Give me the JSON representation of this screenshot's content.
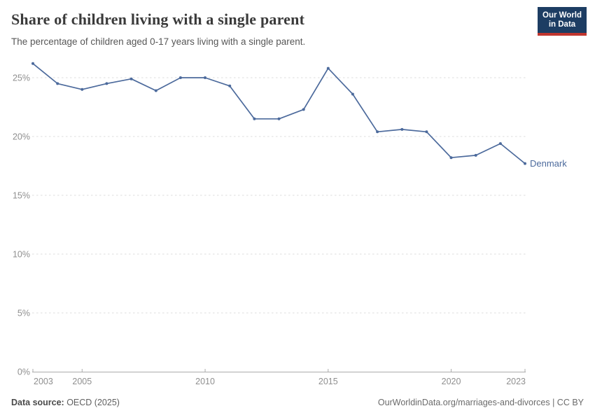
{
  "header": {
    "title": "Share of children living with a single parent",
    "subtitle": "The percentage of children aged 0-17 years living with a single parent."
  },
  "logo": {
    "line1": "Our World",
    "line2": "in Data"
  },
  "chart_data": {
    "type": "line",
    "title": "Share of children living with a single parent",
    "xlabel": "",
    "ylabel": "",
    "x": [
      2003,
      2004,
      2005,
      2006,
      2007,
      2008,
      2009,
      2010,
      2011,
      2012,
      2013,
      2014,
      2015,
      2016,
      2017,
      2018,
      2019,
      2020,
      2021,
      2022,
      2023
    ],
    "series": [
      {
        "name": "Denmark",
        "color": "#4c6a9c",
        "values": [
          26.2,
          24.5,
          24.0,
          24.5,
          24.9,
          23.9,
          25.0,
          25.0,
          24.3,
          21.5,
          21.5,
          22.3,
          25.8,
          23.6,
          20.4,
          20.6,
          20.4,
          18.2,
          18.4,
          19.4,
          17.7
        ]
      }
    ],
    "ylim": [
      0,
      26.5
    ],
    "y_tick_values": [
      0,
      5,
      10,
      15,
      20,
      25
    ],
    "y_tick_labels": [
      "0%",
      "5%",
      "10%",
      "15%",
      "20%",
      "25%"
    ],
    "x_tick_values": [
      2003,
      2005,
      2010,
      2015,
      2020,
      2023
    ],
    "x_tick_labels": [
      "2003",
      "2005",
      "2010",
      "2015",
      "2020",
      "2023"
    ],
    "grid": "horizontal-dashed",
    "legend": "end-of-line-label"
  },
  "footer": {
    "datasource_label": "Data source:",
    "datasource_value": " OECD (2025)",
    "link": "OurWorldinData.org/marriages-and-divorces | CC BY"
  },
  "colors": {
    "line": "#4c6a9c",
    "grid": "#dcdcdc",
    "axis": "#ababab",
    "tick_text": "#8f8f8f",
    "logo_bg": "#1d3d63",
    "logo_red": "#c0352e"
  }
}
